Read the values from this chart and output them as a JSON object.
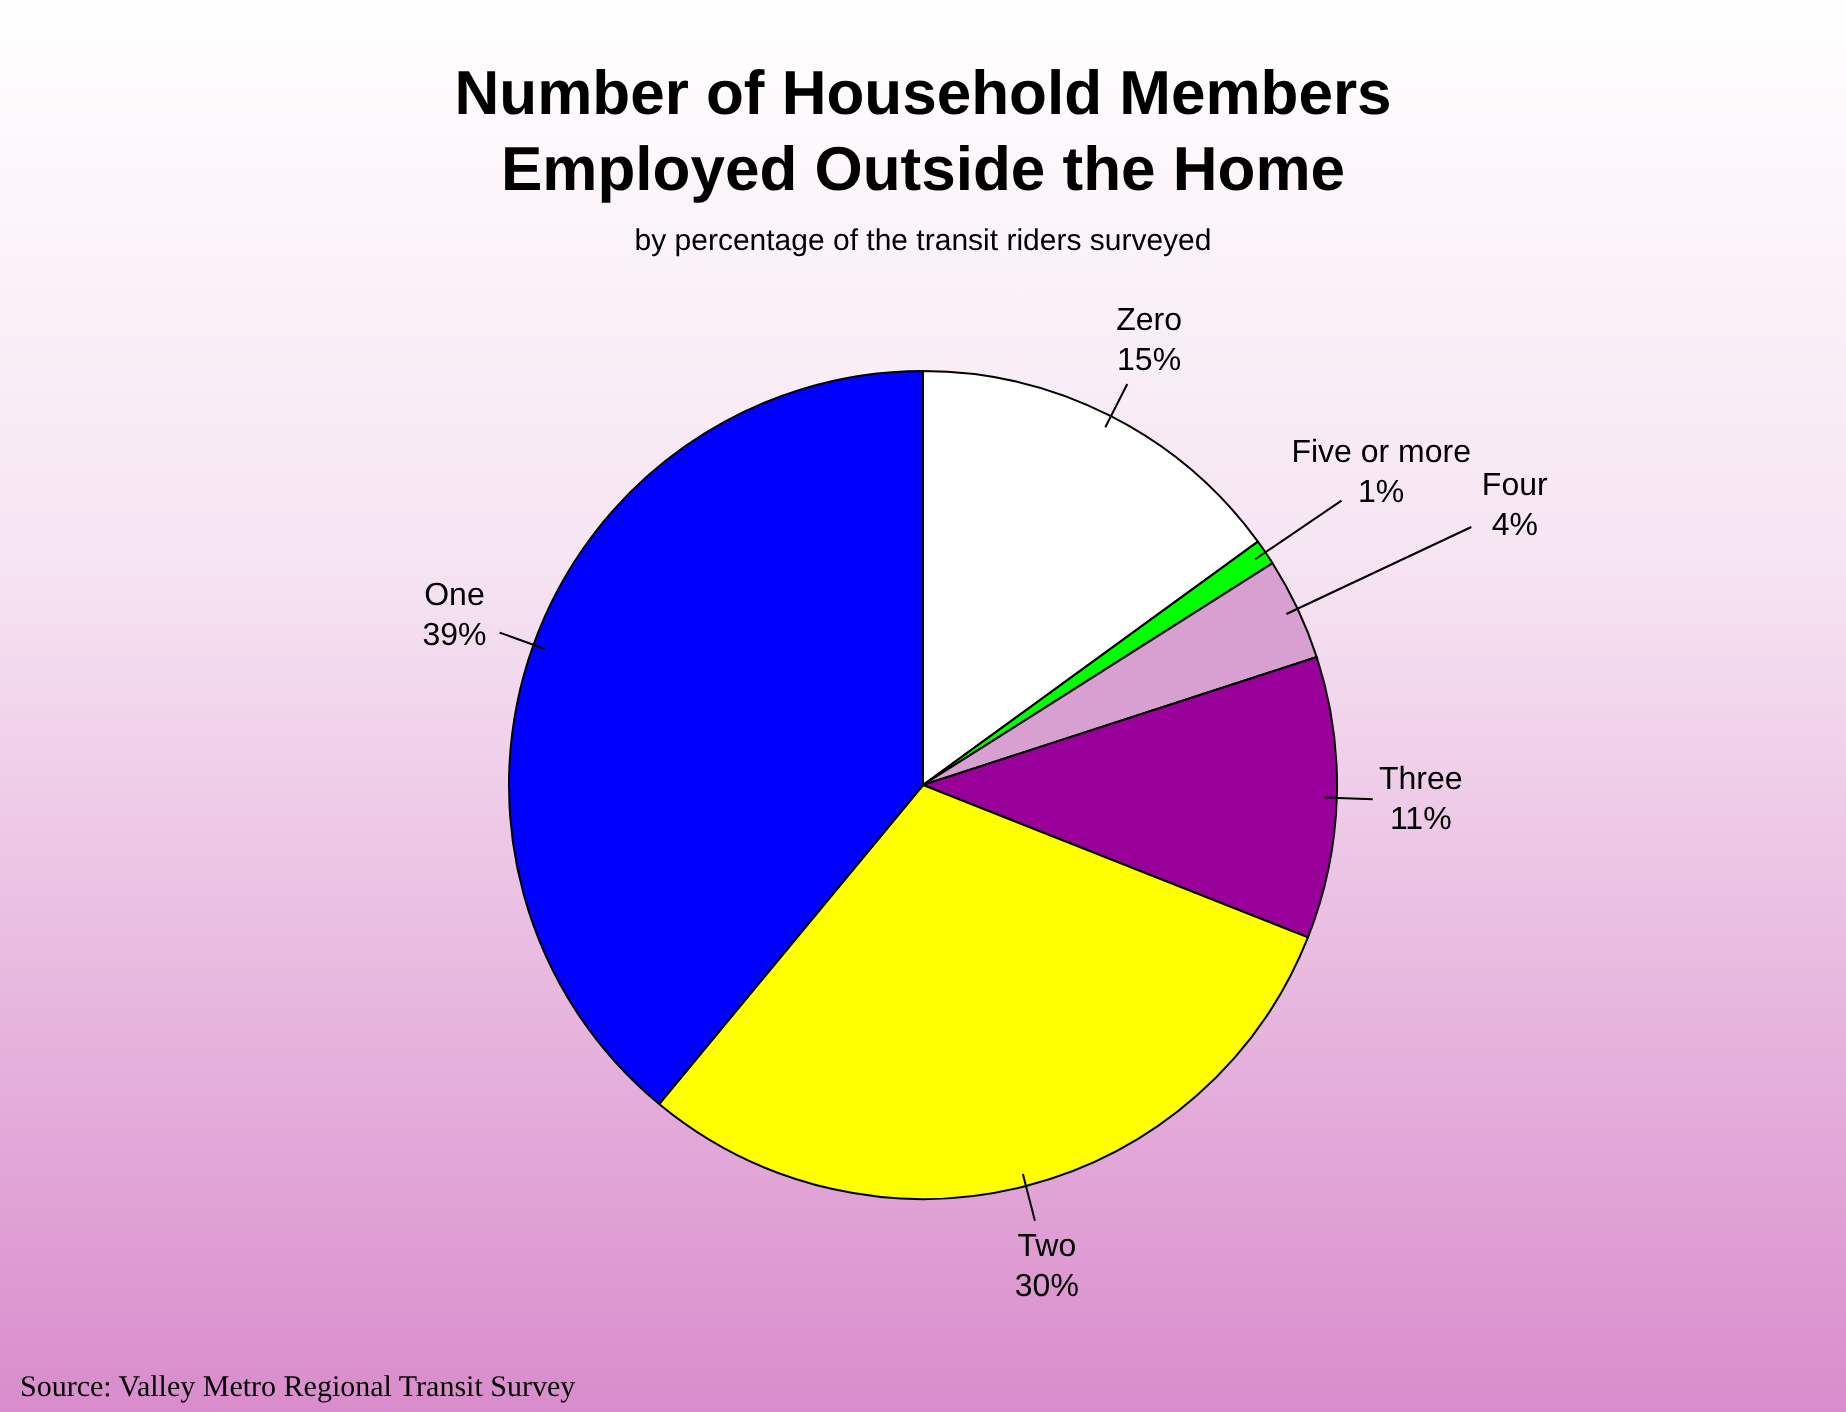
{
  "chart_data": {
    "type": "pie",
    "title": "Number of Household Members Employed Outside the Home",
    "subtitle": "by percentage of the transit riders surveyed",
    "categories": [
      "Zero",
      "Five or more",
      "Four",
      "Three",
      "Two",
      "One"
    ],
    "values": [
      15,
      1,
      4,
      11,
      30,
      39
    ],
    "value_labels": [
      "15%",
      "1%",
      "4%",
      "11%",
      "30%",
      "39%"
    ],
    "colors": [
      "#ffffff",
      "#00ff00",
      "#d8a0d0",
      "#990099",
      "#ffff00",
      "#0000ff"
    ],
    "legend": false,
    "annotations": [
      "Source:  Valley Metro Regional Transit Survey"
    ]
  }
}
